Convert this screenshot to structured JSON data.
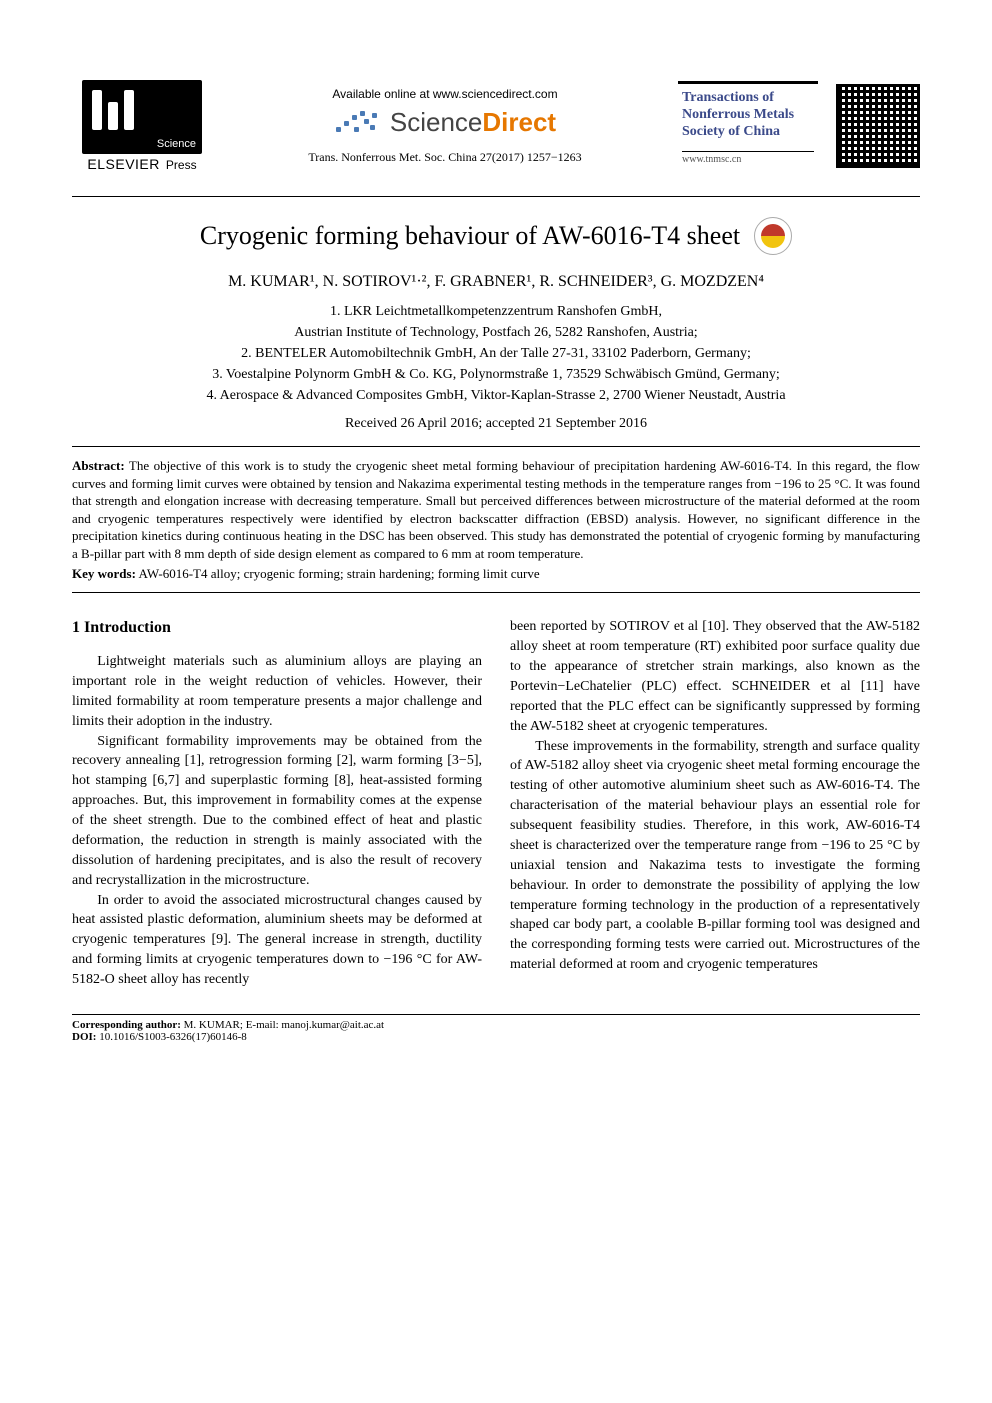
{
  "header": {
    "publisher_name": "ELSEVIER",
    "science_sublabel": "Science",
    "press_sublabel": "Press",
    "available_text": "Available online at www.sciencedirect.com",
    "sciencedirect_word_prefix": "Science",
    "sciencedirect_word_bold": "Direct",
    "trans_citation": "Trans. Nonferrous Met. Soc. China 27(2017) 1257−1263",
    "journal_title_line1": "Transactions of",
    "journal_title_line2": "Nonferrous Metals",
    "journal_title_line3": "Society of China",
    "journal_url": "www.tnmsc.cn",
    "crossmark_label": "CrossMark"
  },
  "title": "Cryogenic forming behaviour of AW-6016-T4 sheet",
  "authors": "M. KUMAR¹, N. SOTIROV¹·², F. GRABNER¹, R. SCHNEIDER³, G. MOZDZEN⁴",
  "affiliations": [
    "1. LKR Leichtmetallkompetenzzentrum Ranshofen GmbH,",
    "Austrian Institute of Technology, Postfach 26, 5282 Ranshofen, Austria;",
    "2. BENTELER Automobiltechnik GmbH, An der Talle 27-31, 33102 Paderborn, Germany;",
    "3. Voestalpine Polynorm GmbH & Co. KG, Polynormstraße 1, 73529 Schwäbisch Gmünd, Germany;",
    "4. Aerospace & Advanced Composites GmbH, Viktor-Kaplan-Strasse 2, 2700 Wiener Neustadt, Austria"
  ],
  "dates": "Received 26 April 2016; accepted 21 September 2016",
  "abstract_label": "Abstract:",
  "abstract_text": "The objective of this work is to study the cryogenic sheet metal forming behaviour of precipitation hardening AW-6016-T4. In this regard, the flow curves and forming limit curves were obtained by tension and Nakazima experimental testing methods in the temperature ranges from −196 to 25 °C. It was found that strength and elongation increase with decreasing temperature. Small but perceived differences between microstructure of the material deformed at the room and cryogenic temperatures respectively were identified by electron backscatter diffraction (EBSD) analysis. However, no significant difference in the precipitation kinetics during continuous heating in the DSC has been observed. This study has demonstrated the potential of cryogenic forming by manufacturing a B-pillar part with 8 mm depth of side design element as compared to 6 mm at room temperature.",
  "keywords_label": "Key words:",
  "keywords_text": "AW-6016-T4 alloy; cryogenic forming; strain hardening; forming limit curve",
  "section1_title": "1 Introduction",
  "col_left": {
    "p1": "Lightweight materials such as aluminium alloys are playing an important role in the weight reduction of vehicles. However, their limited formability at room temperature presents a major challenge and limits their adoption in the industry.",
    "p2": "Significant formability improvements may be obtained from the recovery annealing [1], retrogression forming [2], warm forming [3−5], hot stamping [6,7] and superplastic forming [8], heat-assisted forming approaches. But, this improvement in formability comes at the expense of the sheet strength. Due to the combined effect of heat and plastic deformation, the reduction in strength is mainly associated with the dissolution of hardening precipitates, and is also the result of recovery and recrystallization in the microstructure.",
    "p3": "In order to avoid the associated microstructural changes caused by heat assisted plastic deformation, aluminium sheets may be deformed at cryogenic temperatures [9]. The general increase in strength, ductility and forming limits at cryogenic temperatures down to −196 °C for AW-5182-O sheet alloy has recently"
  },
  "col_right": {
    "p1": "been reported by SOTIROV et al [10]. They observed that the AW-5182 alloy sheet at room temperature (RT) exhibited poor surface quality due to the appearance of stretcher strain markings, also known as the Portevin−LeChatelier (PLC) effect. SCHNEIDER et al [11] have reported that the PLC effect can be significantly suppressed by forming the AW-5182 sheet at cryogenic temperatures.",
    "p2": "These improvements in the formability, strength and surface quality of AW-5182 alloy sheet via cryogenic sheet metal forming encourage the testing of other automotive aluminium sheet such as AW-6016-T4. The characterisation of the material behaviour plays an essential role for subsequent feasibility studies. Therefore, in this work, AW-6016-T4 sheet is characterized over the temperature range from −196 to 25 °C by uniaxial tension and Nakazima tests to investigate the forming behaviour. In order to demonstrate the possibility of applying the low temperature forming technology in the production of a representatively shaped car body part, a coolable B-pillar forming tool was designed and the corresponding forming tests were carried out. Microstructures of the material deformed at room and cryogenic temperatures"
  },
  "footer": {
    "corr_label": "Corresponding author:",
    "corr_text": " M. KUMAR; E-mail: manoj.kumar@ait.ac.at",
    "doi_label": "DOI:",
    "doi_text": " 10.1016/S1003-6326(17)60146-8"
  },
  "colors": {
    "journal_title": "#3b4a8a",
    "sd_orange": "#e67700",
    "sd_dot": "#4a7ab5",
    "crossmark_red": "#c0392b",
    "crossmark_yellow": "#f1c40f"
  }
}
